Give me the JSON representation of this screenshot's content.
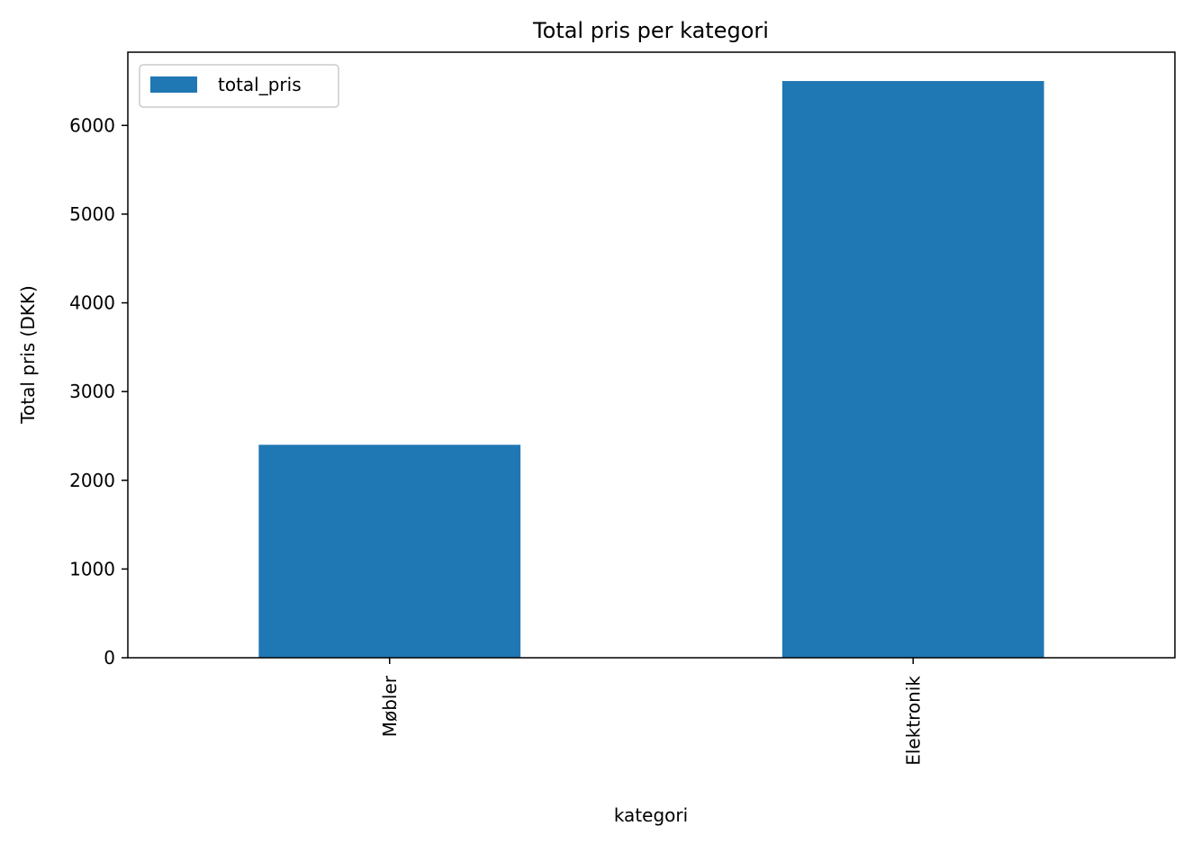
{
  "chart_data": {
    "type": "bar",
    "title": "Total pris per kategori",
    "xlabel": "kategori",
    "ylabel": "Total pris (DKK)",
    "categories": [
      "Møbler",
      "Elektronik"
    ],
    "series": [
      {
        "name": "total_pris",
        "values": [
          2400,
          6500
        ]
      }
    ],
    "ylim": [
      0,
      6825
    ],
    "yticks": [
      0,
      1000,
      2000,
      3000,
      4000,
      5000,
      6000
    ],
    "tick_labels": [
      "0",
      "1000",
      "2000",
      "3000",
      "4000",
      "5000",
      "6000"
    ],
    "legend": "top-left",
    "grid": false,
    "color": "#1f77b4"
  }
}
